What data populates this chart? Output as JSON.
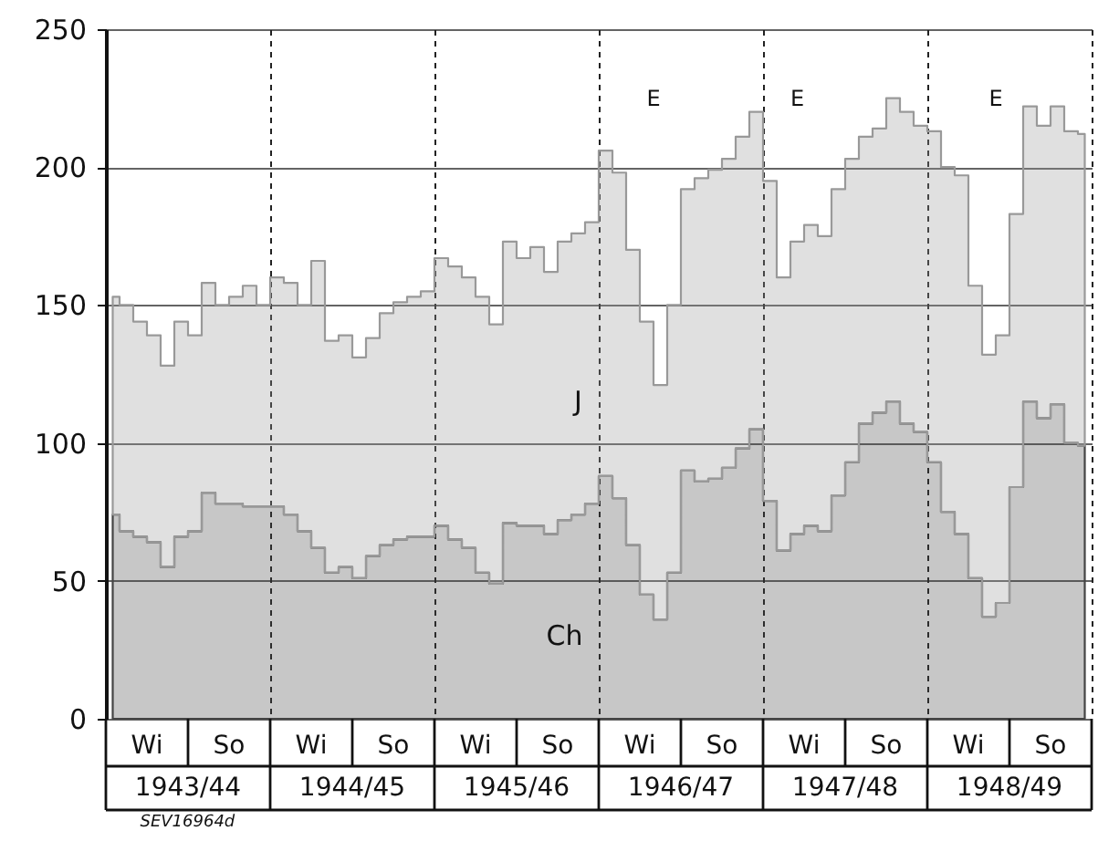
{
  "chart_data": {
    "type": "area",
    "stacked": true,
    "tick_labels": "y",
    "grid": true,
    "categories": [
      null,
      null,
      null,
      null,
      null,
      null,
      null,
      null,
      null,
      null,
      null,
      null,
      null,
      null,
      null,
      null,
      null,
      null,
      null,
      null,
      null,
      null,
      null,
      null,
      null,
      null,
      null,
      null,
      null,
      null,
      null,
      null,
      null,
      null,
      null,
      null,
      null,
      null,
      null,
      null,
      null,
      null,
      null,
      null,
      null,
      null,
      null,
      null,
      null,
      null,
      null,
      null,
      null,
      null,
      null,
      null,
      null,
      null,
      null,
      null,
      null,
      null,
      null,
      null,
      null,
      null,
      null,
      null,
      null,
      null,
      null,
      null
    ],
    "ylim": [
      0,
      250
    ],
    "yticks": [
      0,
      50,
      100,
      150,
      200,
      250
    ],
    "series": [
      {
        "name": "Ch",
        "color": "#444444",
        "values": [
          74,
          68,
          66,
          64,
          55,
          66,
          68,
          82,
          78,
          78,
          77,
          77,
          77,
          74,
          68,
          62,
          53,
          55,
          51,
          59,
          63,
          65,
          66,
          66,
          70,
          65,
          62,
          53,
          49,
          71,
          70,
          70,
          67,
          72,
          74,
          78,
          88,
          80,
          63,
          45,
          36,
          53,
          90,
          86,
          87,
          91,
          98,
          105,
          79,
          61,
          67,
          70,
          68,
          81,
          93,
          107,
          111,
          115,
          107,
          104,
          93,
          75,
          67,
          51,
          37,
          42,
          84,
          115,
          109,
          114,
          100,
          99
        ]
      },
      {
        "name": "J",
        "color": "#999999",
        "values": [
          79,
          82,
          78,
          75,
          73,
          78,
          71,
          76,
          72,
          75,
          80,
          73,
          83,
          84,
          82,
          104,
          84,
          84,
          80,
          79,
          84,
          86,
          87,
          89,
          97,
          99,
          98,
          100,
          94,
          102,
          97,
          101,
          95,
          101,
          102,
          102,
          118,
          118,
          107,
          99,
          85,
          97,
          102,
          110,
          112,
          112,
          113,
          115,
          116,
          99,
          106,
          109,
          107,
          111,
          110,
          104,
          103,
          110,
          113,
          111,
          120,
          125,
          130,
          106,
          95,
          97,
          99,
          107,
          106,
          108,
          113,
          113
        ]
      }
    ],
    "annotations": [
      "E",
      "E",
      "E",
      "Wi",
      "So",
      "Wi",
      "So",
      "Wi",
      "So",
      "Wi",
      "So",
      "Wi",
      "So",
      "Wi",
      "So",
      "1943/44",
      "1944/45",
      "1945/46",
      "1946/47",
      "1947/48",
      "1948/49",
      "SEV16964d"
    ]
  }
}
